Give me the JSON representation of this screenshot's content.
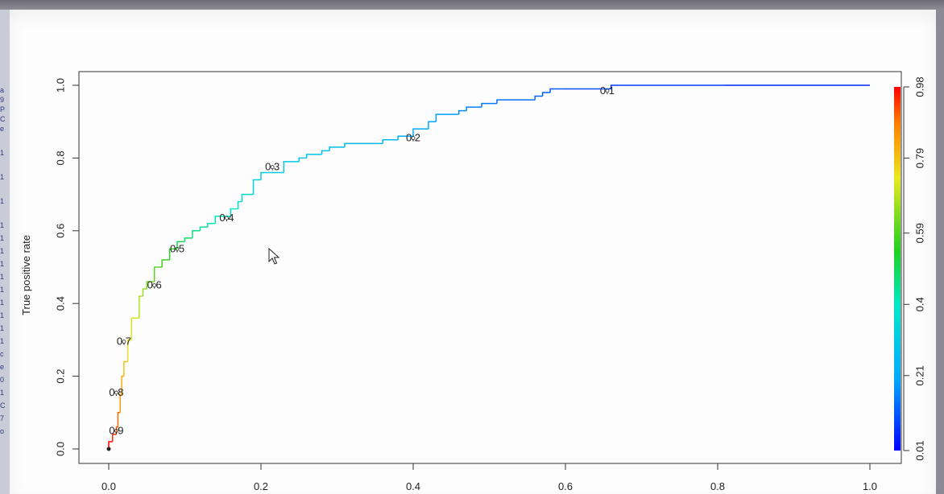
{
  "chart_data": {
    "type": "line",
    "title": "",
    "xlabel": "",
    "ylabel": "True positive rate",
    "xlim": [
      0,
      1
    ],
    "ylim": [
      0,
      1
    ],
    "x_ticks": [
      "0.0",
      "0.2",
      "0.4",
      "0.6",
      "0.8",
      "1.0"
    ],
    "y_ticks": [
      "0.0",
      "0.2",
      "0.4",
      "0.6",
      "0.8",
      "1.0"
    ],
    "series": [
      {
        "x": [
          0.0,
          0.005,
          0.01,
          0.012,
          0.015,
          0.017,
          0.02,
          0.025,
          0.03,
          0.04,
          0.045,
          0.05,
          0.06,
          0.07,
          0.08,
          0.09,
          0.1,
          0.11,
          0.12,
          0.13,
          0.14,
          0.16,
          0.17,
          0.175,
          0.19,
          0.2,
          0.23,
          0.25,
          0.26,
          0.28,
          0.29,
          0.31,
          0.36,
          0.38,
          0.4,
          0.42,
          0.43,
          0.46,
          0.47,
          0.49,
          0.51,
          0.56,
          0.57,
          0.58,
          0.6,
          0.66,
          0.81,
          1.0
        ],
        "y": [
          0.0,
          0.02,
          0.04,
          0.06,
          0.1,
          0.15,
          0.2,
          0.24,
          0.3,
          0.36,
          0.42,
          0.44,
          0.46,
          0.5,
          0.52,
          0.55,
          0.57,
          0.58,
          0.6,
          0.61,
          0.62,
          0.64,
          0.66,
          0.68,
          0.7,
          0.74,
          0.76,
          0.79,
          0.8,
          0.81,
          0.82,
          0.83,
          0.84,
          0.85,
          0.86,
          0.88,
          0.9,
          0.92,
          0.93,
          0.94,
          0.95,
          0.96,
          0.97,
          0.98,
          0.99,
          0.99,
          1.0,
          1.0
        ],
        "cutoff": [
          0.98,
          0.95,
          0.92,
          0.9,
          0.85,
          0.82,
          0.79,
          0.75,
          0.72,
          0.68,
          0.66,
          0.62,
          0.6,
          0.57,
          0.55,
          0.5,
          0.48,
          0.46,
          0.44,
          0.42,
          0.41,
          0.4,
          0.38,
          0.36,
          0.33,
          0.31,
          0.3,
          0.29,
          0.28,
          0.27,
          0.26,
          0.25,
          0.24,
          0.22,
          0.21,
          0.2,
          0.19,
          0.17,
          0.16,
          0.15,
          0.14,
          0.13,
          0.12,
          0.11,
          0.1,
          0.08,
          0.05,
          0.01
        ]
      }
    ],
    "threshold_labels": [
      {
        "label": "0.9",
        "x": 0.01,
        "y": 0.05
      },
      {
        "label": "0.8",
        "x": 0.01,
        "y": 0.155
      },
      {
        "label": "0.7",
        "x": 0.02,
        "y": 0.295
      },
      {
        "label": "0.6",
        "x": 0.06,
        "y": 0.45
      },
      {
        "label": "0.5",
        "x": 0.09,
        "y": 0.55
      },
      {
        "label": "0.4",
        "x": 0.155,
        "y": 0.635
      },
      {
        "label": "0.3",
        "x": 0.215,
        "y": 0.775
      },
      {
        "label": "0.2",
        "x": 0.4,
        "y": 0.855
      },
      {
        "label": "0.1",
        "x": 0.655,
        "y": 0.985
      }
    ],
    "colorbar": {
      "ticks": [
        "0.01",
        "0.21",
        "0.4",
        "0.59",
        "0.79",
        "0.98"
      ],
      "values": [
        0.01,
        0.21,
        0.4,
        0.59,
        0.79,
        0.98
      ],
      "range": [
        0.01,
        0.98
      ]
    },
    "grid": false
  },
  "left_fragments": [
    "a",
    "9",
    "P",
    "C",
    "e",
    "1",
    "1",
    "1",
    "1",
    "1",
    "1",
    "1",
    "1",
    "1",
    "1",
    "1",
    "1",
    "1",
    "c",
    "e",
    "0",
    "1",
    "C",
    "7",
    "o"
  ]
}
